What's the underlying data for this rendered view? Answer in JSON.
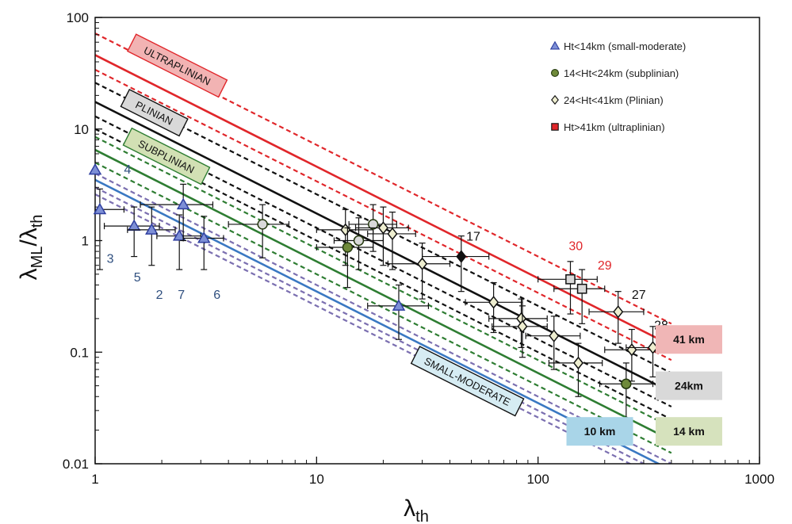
{
  "chart_data": {
    "type": "scatter",
    "xscale": "log",
    "yscale": "log",
    "xlim": [
      1,
      1000
    ],
    "ylim": [
      0.01,
      100
    ],
    "grid": false,
    "legend_position": "top-right",
    "x_ticks": [
      "1",
      "10",
      "100",
      "1000"
    ],
    "y_ticks": [
      "0.01",
      "0.1",
      "1",
      "10",
      "100"
    ],
    "xlabel": {
      "base": "λ",
      "sub": "th"
    },
    "ylabel": {
      "base1": "λ",
      "sub1": "ML",
      "sep": "/",
      "base2": "λ",
      "sub2": "th"
    },
    "legend": [
      {
        "label": "Ht<14km (small-moderate)",
        "marker": "triangle",
        "color": "#7d8fd6",
        "edge": "#2f3fa0"
      },
      {
        "label": "14<Ht<24km (subplinian)",
        "marker": "circle",
        "color": "#6f8a3a",
        "edge": "#263a10"
      },
      {
        "label": "24<Ht<41km (Plinian)",
        "marker": "diamond",
        "color": "#eeeed0",
        "edge": "#111111"
      },
      {
        "label": "Ht>41km (ultraplinian)",
        "marker": "square",
        "color": "#e0262a",
        "edge": "#111111"
      }
    ],
    "lines": [
      {
        "a": 72,
        "style": "dashed",
        "color": "#e0262a"
      },
      {
        "a": 46,
        "style": "solid",
        "color": "#e0262a"
      },
      {
        "a": 34,
        "style": "dashed",
        "color": "#e0262a"
      },
      {
        "a": 26,
        "style": "dashed",
        "color": "#111111"
      },
      {
        "a": 17.5,
        "style": "solid",
        "color": "#111111"
      },
      {
        "a": 13,
        "style": "dashed",
        "color": "#111111"
      },
      {
        "a": 10,
        "style": "dashed",
        "color": "#111111"
      },
      {
        "a": 8.5,
        "style": "dashed",
        "color": "#2e7d32"
      },
      {
        "a": 6.5,
        "style": "solid",
        "color": "#2e7d32"
      },
      {
        "a": 5.0,
        "style": "dashed",
        "color": "#2e7d32"
      },
      {
        "a": 4.0,
        "style": "dashed",
        "color": "#7b6fb0"
      },
      {
        "a": 3.5,
        "style": "solid",
        "color": "#3a78c2"
      },
      {
        "a": 3.0,
        "style": "dashed",
        "color": "#7b6fb0"
      },
      {
        "a": 2.6,
        "style": "dashed",
        "color": "#7b6fb0"
      }
    ],
    "points": [
      {
        "x": 1.0,
        "y": 4.3,
        "marker": "triangle",
        "xlo": 1.0,
        "xhi": 1.0,
        "ylo": 4.3,
        "yhi": 4.3
      },
      {
        "x": 1.05,
        "y": 1.9,
        "marker": "triangle",
        "xlo": 1.0,
        "xhi": 1.35,
        "ylo": 0.55,
        "yhi": 2.9
      },
      {
        "x": 1.5,
        "y": 1.35,
        "marker": "triangle",
        "xlo": 1.1,
        "xhi": 1.95,
        "ylo": 0.72,
        "yhi": 2.0
      },
      {
        "x": 1.8,
        "y": 1.25,
        "marker": "triangle",
        "xlo": 1.4,
        "xhi": 2.3,
        "ylo": 0.6,
        "yhi": 2.0
      },
      {
        "x": 2.4,
        "y": 1.1,
        "marker": "triangle",
        "xlo": 1.9,
        "xhi": 3.0,
        "ylo": 0.55,
        "yhi": 1.7
      },
      {
        "x": 2.5,
        "y": 2.1,
        "marker": "triangle",
        "xlo": 1.6,
        "xhi": 3.4,
        "ylo": 1.0,
        "yhi": 3.2
      },
      {
        "x": 3.1,
        "y": 1.05,
        "marker": "triangle",
        "xlo": 2.5,
        "xhi": 3.8,
        "ylo": 0.55,
        "yhi": 1.65
      },
      {
        "x": 5.7,
        "y": 1.4,
        "marker": "circle",
        "fill": "#d9d9d9",
        "xlo": 4.0,
        "xhi": 7.5,
        "ylo": 0.7,
        "yhi": 2.1
      },
      {
        "x": 13.5,
        "y": 1.25,
        "marker": "diamond",
        "xlo": 10.0,
        "xhi": 18.0,
        "ylo": 0.6,
        "yhi": 1.9
      },
      {
        "x": 13.8,
        "y": 0.87,
        "marker": "circle",
        "xlo": 10.0,
        "xhi": 18.0,
        "ylo": 0.38,
        "yhi": 1.3
      },
      {
        "x": 15.5,
        "y": 1.0,
        "marker": "circle",
        "fill": "#d9d9d9",
        "xlo": 12.0,
        "xhi": 20.0,
        "ylo": 0.55,
        "yhi": 1.6
      },
      {
        "x": 18.0,
        "y": 1.4,
        "marker": "circle",
        "fill": "#d9d9d9",
        "xlo": 14.0,
        "xhi": 23.0,
        "ylo": 0.8,
        "yhi": 2.1
      },
      {
        "x": 20.0,
        "y": 1.3,
        "marker": "diamond",
        "xlo": 15.0,
        "xhi": 26.0,
        "ylo": 0.6,
        "yhi": 2.0
      },
      {
        "x": 22.0,
        "y": 1.15,
        "marker": "diamond",
        "xlo": 17.0,
        "xhi": 28.0,
        "ylo": 0.55,
        "yhi": 1.8
      },
      {
        "x": 23.5,
        "y": 0.26,
        "marker": "triangle",
        "xlo": 17.0,
        "xhi": 32.0,
        "ylo": 0.13,
        "yhi": 0.4
      },
      {
        "x": 30.0,
        "y": 0.62,
        "marker": "diamond",
        "xlo": 21.0,
        "xhi": 40.0,
        "ylo": 0.3,
        "yhi": 0.95
      },
      {
        "x": 45.0,
        "y": 0.72,
        "marker": "diamond",
        "fill": "#111111",
        "xlo": 30.0,
        "xhi": 60.0,
        "ylo": 0.35,
        "yhi": 1.1
      },
      {
        "x": 63.0,
        "y": 0.28,
        "marker": "diamond",
        "xlo": 47.0,
        "xhi": 85.0,
        "ylo": 0.15,
        "yhi": 0.42
      },
      {
        "x": 84.0,
        "y": 0.2,
        "marker": "diamond",
        "xlo": 60.0,
        "xhi": 110.0,
        "ylo": 0.11,
        "yhi": 0.3
      },
      {
        "x": 85.0,
        "y": 0.17,
        "marker": "diamond",
        "xlo": 62.0,
        "xhi": 110.0,
        "ylo": 0.09,
        "yhi": 0.26
      },
      {
        "x": 118.0,
        "y": 0.14,
        "marker": "diamond",
        "xlo": 88.0,
        "xhi": 155.0,
        "ylo": 0.07,
        "yhi": 0.21
      },
      {
        "x": 140.0,
        "y": 0.45,
        "marker": "square",
        "fill": "#d9d9d9",
        "xlo": 100.0,
        "xhi": 185.0,
        "ylo": 0.22,
        "yhi": 0.65
      },
      {
        "x": 152.0,
        "y": 0.08,
        "marker": "diamond",
        "xlo": 112.0,
        "xhi": 195.0,
        "ylo": 0.04,
        "yhi": 0.12
      },
      {
        "x": 158.0,
        "y": 0.37,
        "marker": "square",
        "fill": "#d9d9d9",
        "xlo": 118.0,
        "xhi": 200.0,
        "ylo": 0.18,
        "yhi": 0.55
      },
      {
        "x": 230.0,
        "y": 0.23,
        "marker": "diamond",
        "xlo": 170.0,
        "xhi": 300.0,
        "ylo": 0.12,
        "yhi": 0.35
      },
      {
        "x": 250.0,
        "y": 0.052,
        "marker": "circle",
        "xlo": 190.0,
        "xhi": 330.0,
        "ylo": 0.025,
        "yhi": 0.08
      },
      {
        "x": 265.0,
        "y": 0.105,
        "marker": "diamond",
        "xlo": 200.0,
        "xhi": 340.0,
        "ylo": 0.055,
        "yhi": 0.16
      },
      {
        "x": 330.0,
        "y": 0.11,
        "marker": "diamond",
        "xlo": 250.0,
        "xhi": 420.0,
        "ylo": 0.06,
        "yhi": 0.17
      }
    ],
    "point_labels": [
      {
        "text": "4",
        "x": 1.4,
        "y": 4.0,
        "color": "#2f4f7f"
      },
      {
        "text": "3",
        "x": 1.17,
        "y": 0.63,
        "color": "#2f4f7f"
      },
      {
        "text": "5",
        "x": 1.55,
        "y": 0.43,
        "color": "#2f4f7f"
      },
      {
        "text": "2",
        "x": 1.95,
        "y": 0.3,
        "color": "#2f4f7f"
      },
      {
        "text": "7",
        "x": 2.45,
        "y": 0.3,
        "color": "#2f4f7f"
      },
      {
        "text": "6",
        "x": 3.55,
        "y": 0.3,
        "color": "#2f4f7f"
      },
      {
        "text": "17",
        "x": 51.0,
        "y": 1.0,
        "color": "#111111"
      },
      {
        "text": "30",
        "x": 148.0,
        "y": 0.82,
        "color": "#e0262a"
      },
      {
        "text": "29",
        "x": 200.0,
        "y": 0.55,
        "color": "#e0262a"
      },
      {
        "text": "27",
        "x": 285.0,
        "y": 0.3,
        "color": "#111111"
      },
      {
        "text": "28",
        "x": 360.0,
        "y": 0.16,
        "color": "#111111"
      }
    ],
    "regime_labels": [
      {
        "text": "ULTRAPLINIAN",
        "x": 2.35,
        "y": 37.0,
        "fill": "#f2b3b3",
        "stroke": "#e0262a"
      },
      {
        "text": "PLINIAN",
        "x": 1.85,
        "y": 14.0,
        "fill": "#d9d9d9",
        "stroke": "#111111"
      },
      {
        "text": "SUBPLINIAN",
        "x": 2.1,
        "y": 5.7,
        "fill": "#d2e0b4",
        "stroke": "#2e7d32"
      },
      {
        "text": "SMALL-MODERATE",
        "x": 48.0,
        "y": 0.055,
        "fill": "#d6ecf3",
        "stroke": "#111111"
      }
    ],
    "height_labels": [
      {
        "text": "41 km",
        "fill": "#f0b6b6",
        "x": 480.0,
        "y": 0.13
      },
      {
        "text": "24km",
        "fill": "#d9d9d9",
        "x": 480.0,
        "y": 0.05
      },
      {
        "text": "14 km",
        "fill": "#d6e2bd",
        "x": 480.0,
        "y": 0.0195
      },
      {
        "text": "10 km",
        "fill": "#a9d5e8",
        "x": 190.0,
        "y": 0.0195
      }
    ]
  }
}
